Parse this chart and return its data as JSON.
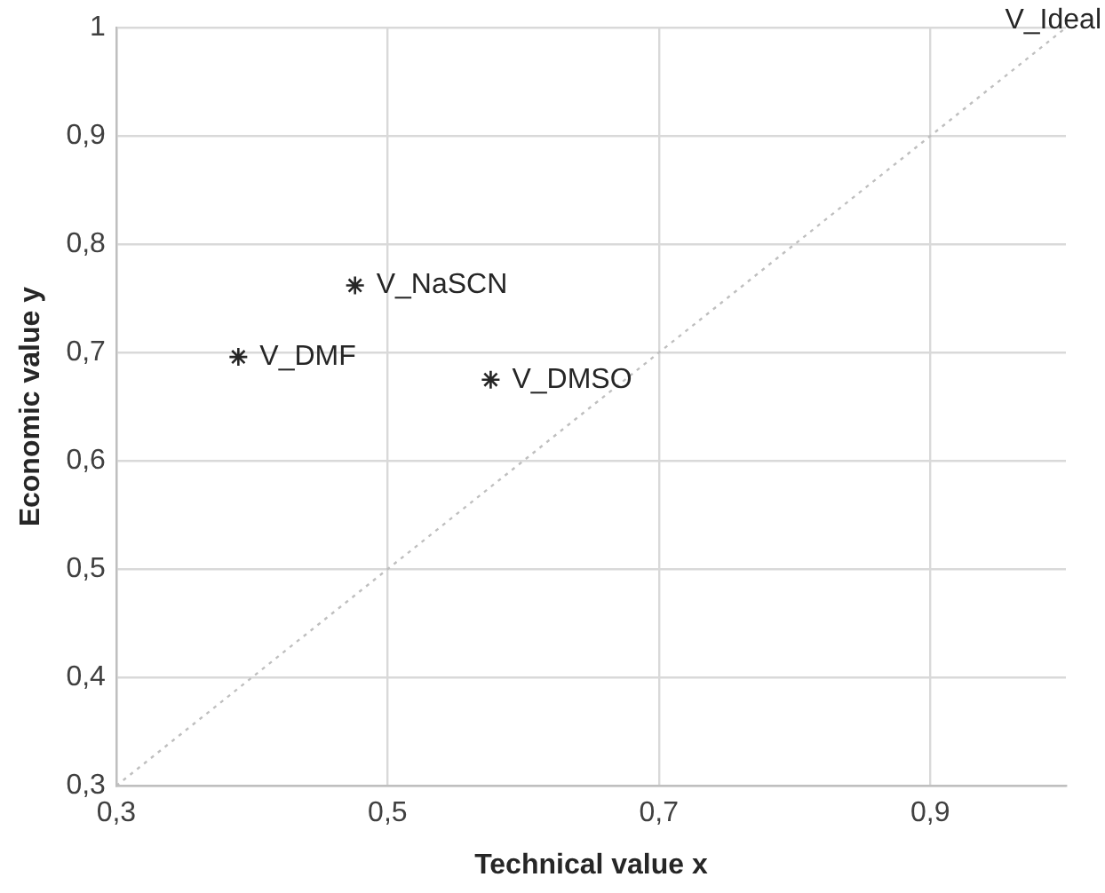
{
  "chart_data": {
    "type": "scatter",
    "xlabel": "Technical value x",
    "ylabel": "Economic value y",
    "xlim": [
      0.3,
      1
    ],
    "ylim": [
      0.3,
      1
    ],
    "xticks": [
      {
        "value": 0.3,
        "label": "0,3"
      },
      {
        "value": 0.5,
        "label": "0,5"
      },
      {
        "value": 0.7,
        "label": "0,7"
      },
      {
        "value": 0.9,
        "label": "0,9"
      }
    ],
    "yticks": [
      {
        "value": 0.3,
        "label": "0,3"
      },
      {
        "value": 0.4,
        "label": "0,4"
      },
      {
        "value": 0.5,
        "label": "0,5"
      },
      {
        "value": 0.6,
        "label": "0,6"
      },
      {
        "value": 0.7,
        "label": "0,7"
      },
      {
        "value": 0.8,
        "label": "0,8"
      },
      {
        "value": 0.9,
        "label": "0,9"
      },
      {
        "value": 1,
        "label": "1"
      }
    ],
    "grid": true,
    "legend": false,
    "marker": "cross",
    "series": [
      {
        "name": "V_Ideal",
        "type": "line",
        "line_style": "dotted",
        "marker": "none",
        "color": "#bfbfbf",
        "x": [
          0.3,
          1
        ],
        "values": [
          0.3,
          1
        ]
      },
      {
        "name": "V_NaSCN",
        "color": "#262626",
        "x": [
          0.476
        ],
        "values": [
          0.762
        ]
      },
      {
        "name": "V_DMF",
        "color": "#262626",
        "x": [
          0.39
        ],
        "values": [
          0.696
        ]
      },
      {
        "name": "V_DMSO",
        "color": "#262626",
        "x": [
          0.576
        ],
        "values": [
          0.675
        ]
      }
    ]
  }
}
